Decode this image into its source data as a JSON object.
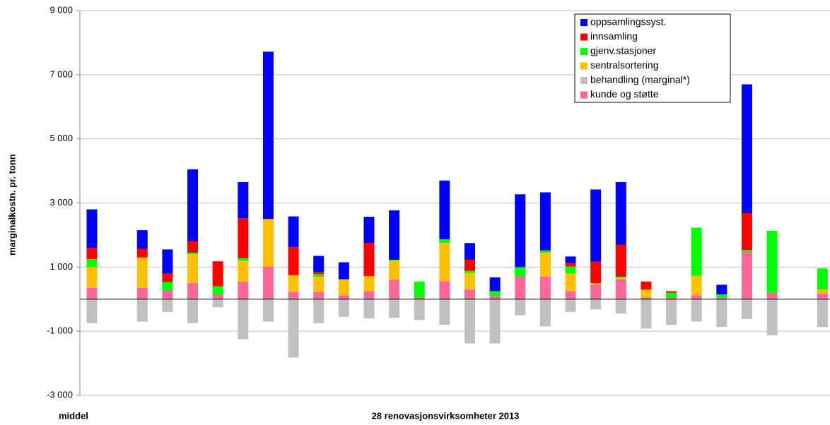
{
  "chart_data": {
    "type": "bar",
    "stacked": true,
    "ylabel": "marginalkostn. pr. tonn",
    "xlabel": "28 renovasjonsvirksomheter 2013",
    "categories": [
      "middel",
      null,
      null,
      null,
      null,
      null,
      null,
      null,
      null,
      null,
      null,
      null,
      null,
      null,
      null,
      null,
      null,
      null,
      null,
      null,
      null,
      null,
      null,
      null,
      null,
      null,
      null,
      null,
      null,
      null
    ],
    "ylim": [
      -3000,
      9000
    ],
    "yticks": [
      {
        "value": -3000,
        "label": "-3 000"
      },
      {
        "value": -1000,
        "label": "-1 000"
      },
      {
        "value": 1000,
        "label": "1 000"
      },
      {
        "value": 3000,
        "label": "3 000"
      },
      {
        "value": 5000,
        "label": "5 000"
      },
      {
        "value": 7000,
        "label": "7 000"
      },
      {
        "value": 9000,
        "label": "9 000"
      }
    ],
    "grid": true,
    "legend": "top-right",
    "series": [
      {
        "name": "oppsamlingssyst.",
        "color": "#0000ff",
        "values": [
          1200,
          null,
          580,
          750,
          2250,
          0,
          1130,
          5220,
          960,
          500,
          530,
          820,
          1540,
          0,
          1830,
          520,
          430,
          2270,
          1810,
          200,
          2250,
          1950,
          0,
          0,
          0,
          300,
          4020,
          0,
          null,
          0
        ]
      },
      {
        "name": "innsamling",
        "color": "#ff0000",
        "values": [
          350,
          null,
          270,
          270,
          350,
          780,
          1240,
          0,
          870,
          70,
          0,
          1030,
          0,
          0,
          0,
          350,
          0,
          0,
          0,
          110,
          670,
          1000,
          250,
          50,
          0,
          0,
          1150,
          0,
          null,
          0
        ]
      },
      {
        "name": "gjenv.stasjoner",
        "color": "#00ff00",
        "values": [
          250,
          null,
          0,
          250,
          50,
          250,
          80,
          0,
          0,
          80,
          0,
          0,
          30,
          500,
          120,
          60,
          150,
          300,
          70,
          220,
          0,
          20,
          0,
          150,
          1500,
          100,
          50,
          1930,
          null,
          660
        ]
      },
      {
        "name": "sentralsortering",
        "color": "#ffc000",
        "values": [
          650,
          null,
          950,
          0,
          900,
          0,
          650,
          1480,
          520,
          470,
          500,
          470,
          600,
          0,
          1190,
          520,
          0,
          0,
          750,
          550,
          50,
          60,
          250,
          0,
          610,
          0,
          0,
          0,
          null,
          130
        ]
      },
      {
        "name": "behandling (marginal*)",
        "color": "#c0c0c0",
        "values": [
          -750,
          null,
          -700,
          -400,
          -750,
          -250,
          -1250,
          -700,
          -1820,
          -750,
          -550,
          -600,
          -580,
          -650,
          -800,
          -1380,
          -1380,
          -500,
          -850,
          -400,
          -320,
          -450,
          -920,
          -800,
          -700,
          -870,
          -620,
          -1130,
          null,
          -870
        ]
      },
      {
        "name": "kunde og støtte",
        "color": "#ff6699",
        "values": [
          350,
          null,
          350,
          280,
          500,
          150,
          550,
          1020,
          230,
          230,
          120,
          250,
          600,
          50,
          560,
          300,
          100,
          700,
          700,
          250,
          450,
          620,
          50,
          50,
          120,
          50,
          1480,
          200,
          null,
          170
        ]
      }
    ]
  }
}
